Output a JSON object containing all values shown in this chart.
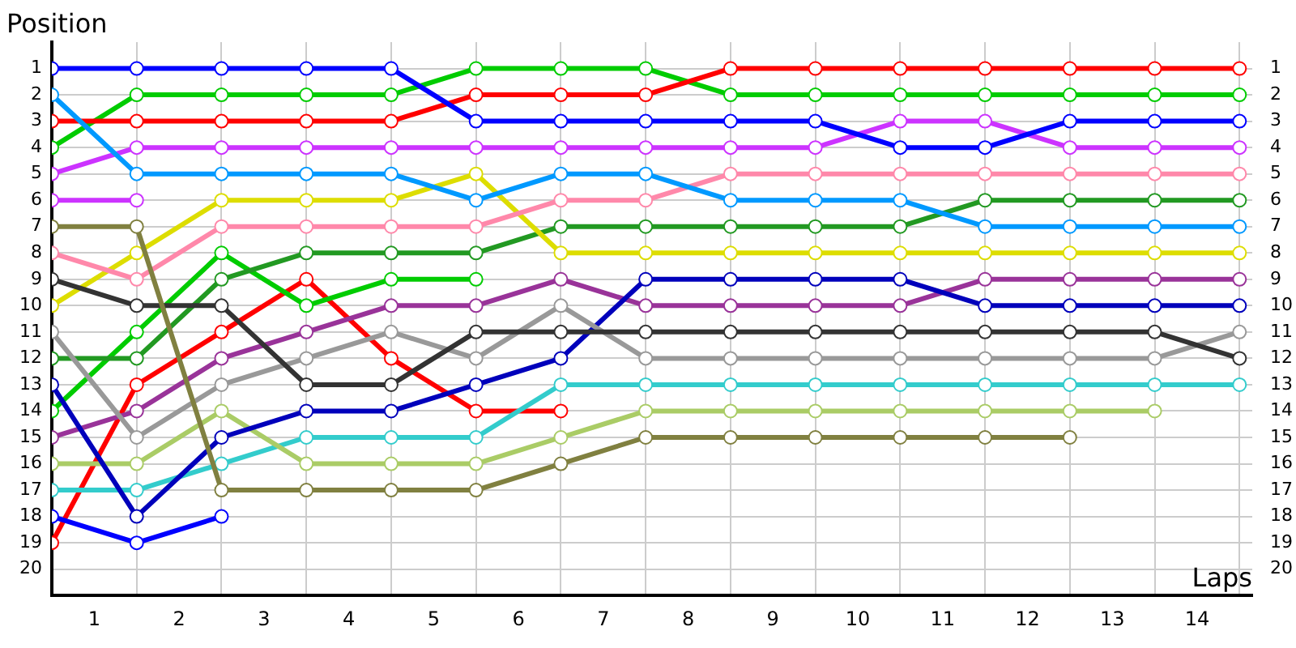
{
  "chart_data": {
    "type": "line",
    "xlabel": "Laps",
    "ylabel": "Position",
    "x": [
      0,
      1,
      2,
      3,
      4,
      5,
      6,
      7,
      8,
      9,
      10,
      11,
      12,
      13,
      14
    ],
    "xlim": [
      0,
      14.15
    ],
    "xticks": [
      {
        "value": 0.5,
        "label": "1"
      },
      {
        "value": 1.5,
        "label": "2"
      },
      {
        "value": 2.5,
        "label": "3"
      },
      {
        "value": 3.5,
        "label": "4"
      },
      {
        "value": 4.5,
        "label": "5"
      },
      {
        "value": 5.5,
        "label": "6"
      },
      {
        "value": 6.5,
        "label": "7"
      },
      {
        "value": 7.5,
        "label": "8"
      },
      {
        "value": 8.5,
        "label": "9"
      },
      {
        "value": 9.5,
        "label": "10"
      },
      {
        "value": 10.5,
        "label": "11"
      },
      {
        "value": 11.5,
        "label": "12"
      },
      {
        "value": 12.5,
        "label": "13"
      },
      {
        "value": 13.5,
        "label": "14"
      },
      {
        "value": 1,
        "label": null
      },
      {
        "value": 2,
        "label": null
      },
      {
        "value": 3,
        "label": null
      },
      {
        "value": 4,
        "label": null
      },
      {
        "value": 5,
        "label": null
      },
      {
        "value": 6,
        "label": null
      },
      {
        "value": 7,
        "label": null
      },
      {
        "value": 8,
        "label": null
      },
      {
        "value": 9,
        "label": null
      },
      {
        "value": 10,
        "label": null
      },
      {
        "value": 11,
        "label": null
      },
      {
        "value": 12,
        "label": null
      },
      {
        "value": 13,
        "label": null
      },
      {
        "value": 14,
        "label": null
      }
    ],
    "ylim": [
      21,
      0
    ],
    "yticks": [
      1,
      2,
      3,
      4,
      5,
      6,
      7,
      8,
      9,
      10,
      11,
      12,
      13,
      14,
      15,
      16,
      17,
      18,
      19,
      20
    ],
    "y2lim": [
      21,
      0
    ],
    "y2ticks": [
      1,
      2,
      3,
      4,
      5,
      6,
      7,
      8,
      9,
      10,
      11,
      12,
      13,
      14,
      15,
      16,
      17,
      18,
      19,
      20
    ],
    "grid": true,
    "legend": false,
    "marker": "circle",
    "line_style": "solid",
    "series": [
      {
        "color": "#0000ff",
        "values": [
          1,
          1,
          1,
          1,
          1,
          3,
          3,
          3,
          3,
          3,
          4,
          4,
          3,
          3,
          3
        ]
      },
      {
        "color": "#0099ff",
        "values": [
          2,
          5,
          5,
          5,
          5,
          6,
          5,
          5,
          6,
          6,
          6,
          7,
          7,
          7,
          7
        ]
      },
      {
        "color": "#ff0000",
        "values": [
          3,
          3,
          3,
          3,
          3,
          2,
          2,
          2,
          1,
          1,
          1,
          1,
          1,
          1,
          1
        ]
      },
      {
        "color": "#00cc00",
        "values": [
          4,
          2,
          2,
          2,
          2,
          1,
          1,
          1,
          2,
          2,
          2,
          2,
          2,
          2,
          2
        ]
      },
      {
        "color": "#cc33ff",
        "values": [
          5,
          4,
          4,
          4,
          4,
          4,
          4,
          4,
          4,
          4,
          3,
          3,
          4,
          4,
          4
        ]
      },
      {
        "color": "#cc33ff",
        "values": [
          6,
          6,
          null,
          null,
          null,
          null,
          null,
          null,
          null,
          null,
          null,
          null,
          null,
          null,
          null
        ]
      },
      {
        "color": "#808040",
        "values": [
          7,
          7,
          17,
          17,
          17,
          17,
          16,
          15,
          15,
          15,
          15,
          15,
          15,
          null,
          null
        ]
      },
      {
        "color": "#ff88aa",
        "values": [
          8,
          9,
          7,
          7,
          7,
          7,
          6,
          6,
          5,
          5,
          5,
          5,
          5,
          5,
          5
        ]
      },
      {
        "color": "#333333",
        "values": [
          9,
          10,
          10,
          13,
          13,
          11,
          11,
          11,
          11,
          11,
          11,
          11,
          11,
          11,
          12
        ]
      },
      {
        "color": "#dddd00",
        "values": [
          10,
          8,
          6,
          6,
          6,
          5,
          8,
          8,
          8,
          8,
          8,
          8,
          8,
          8,
          8
        ]
      },
      {
        "color": "#999999",
        "values": [
          11,
          15,
          13,
          12,
          11,
          12,
          10,
          12,
          12,
          12,
          12,
          12,
          12,
          12,
          11
        ]
      },
      {
        "color": "#229922",
        "values": [
          12,
          12,
          9,
          8,
          8,
          8,
          7,
          7,
          7,
          7,
          7,
          6,
          6,
          6,
          6
        ]
      },
      {
        "color": "#0000bb",
        "values": [
          13,
          18,
          15,
          14,
          14,
          13,
          12,
          9,
          9,
          9,
          9,
          10,
          10,
          10,
          10
        ]
      },
      {
        "color": "#00cc00",
        "values": [
          14,
          11,
          8,
          10,
          9,
          9,
          null,
          null,
          null,
          null,
          null,
          null,
          null,
          null,
          null
        ]
      },
      {
        "color": "#993399",
        "values": [
          15,
          14,
          12,
          11,
          10,
          10,
          9,
          10,
          10,
          10,
          10,
          9,
          9,
          9,
          9
        ]
      },
      {
        "color": "#aacc66",
        "values": [
          16,
          16,
          14,
          16,
          16,
          16,
          15,
          14,
          14,
          14,
          14,
          14,
          14,
          14,
          null
        ]
      },
      {
        "color": "#33cccc",
        "values": [
          17,
          17,
          16,
          15,
          15,
          15,
          13,
          13,
          13,
          13,
          13,
          13,
          13,
          13,
          13
        ]
      },
      {
        "color": "#0000ff",
        "values": [
          18,
          19,
          18,
          null,
          null,
          null,
          null,
          null,
          null,
          null,
          null,
          null,
          null,
          null,
          null
        ]
      },
      {
        "color": "#ff0000",
        "values": [
          19,
          13,
          11,
          9,
          12,
          14,
          14,
          null,
          null,
          null,
          null,
          null,
          null,
          null,
          null
        ]
      }
    ]
  }
}
